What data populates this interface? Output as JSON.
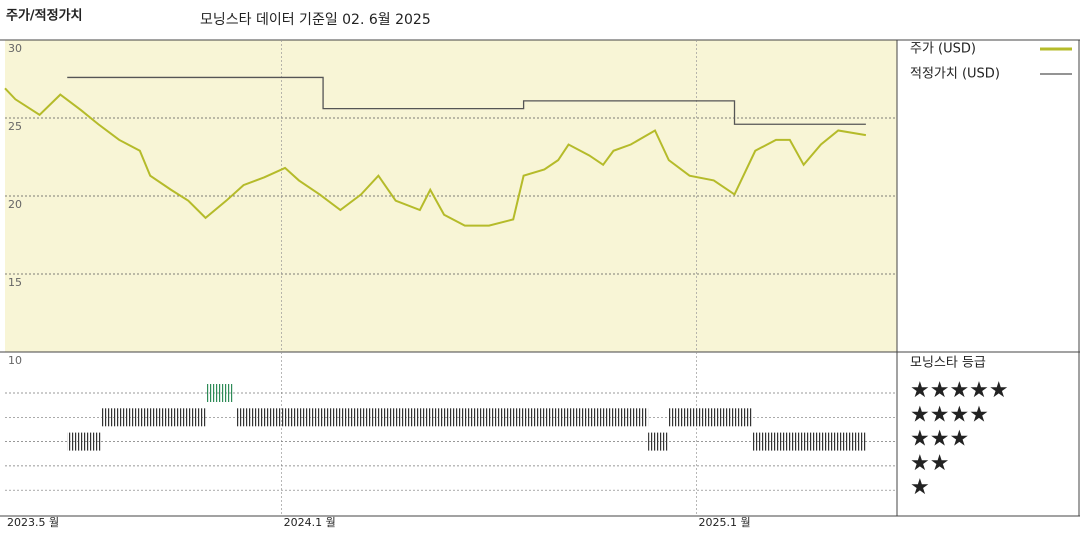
{
  "chart_data": [
    {
      "type": "line",
      "title": "주가/적정가치",
      "subtitle": "모닝스타 데이터 기준일 02. 6월 2025",
      "xlim": [
        0,
        25.8
      ],
      "xticks": [
        {
          "value": 0,
          "label": "2023.5 월"
        },
        {
          "value": 8,
          "label": "2024.1 월"
        },
        {
          "value": 20,
          "label": "2025.1 월"
        }
      ],
      "ylim": [
        10,
        30
      ],
      "yticks": [
        10,
        15,
        20,
        25,
        30
      ],
      "grid": true,
      "series": [
        {
          "name": "주가 (USD)",
          "color": "#b5bb2a",
          "x": [
            0,
            0.3,
            1.0,
            1.6,
            2.2,
            2.7,
            3.3,
            3.9,
            4.2,
            4.8,
            5.3,
            5.8,
            6.4,
            6.9,
            7.5,
            8.1,
            8.5,
            9.1,
            9.7,
            10.3,
            10.8,
            11.3,
            12.0,
            12.3,
            12.7,
            13.3,
            14.0,
            14.7,
            15.0,
            15.6,
            16.0,
            16.3,
            16.9,
            17.3,
            17.6,
            18.1,
            18.8,
            19.2,
            19.8,
            20.5,
            21.1,
            21.7,
            22.3,
            22.7,
            23.1,
            23.6,
            24.1,
            24.9
          ],
          "values": [
            26.9,
            26.2,
            25.2,
            26.5,
            25.5,
            24.6,
            23.6,
            22.9,
            21.3,
            20.4,
            19.7,
            18.6,
            19.7,
            20.7,
            21.2,
            21.8,
            21.0,
            20.1,
            19.1,
            20.1,
            21.3,
            19.7,
            19.1,
            20.4,
            18.8,
            18.1,
            18.1,
            18.5,
            21.3,
            21.7,
            22.3,
            23.3,
            22.6,
            22.0,
            22.9,
            23.3,
            24.2,
            22.3,
            21.3,
            21.0,
            20.1,
            22.9,
            23.6,
            23.6,
            22.0,
            23.3,
            24.2,
            23.9
          ]
        },
        {
          "name": "적정가치 (USD)",
          "color": "#555555",
          "x": [
            1.8,
            9.2,
            9.2,
            15.0,
            15.0,
            21.1,
            21.1,
            24.9
          ],
          "values": [
            27.6,
            27.6,
            25.6,
            25.6,
            26.1,
            26.1,
            24.6,
            24.6
          ]
        }
      ]
    },
    {
      "type": "timeline",
      "title": "모닝스타 등급",
      "xlim": [
        0,
        25.8
      ],
      "levels": [
        5,
        4,
        3,
        2,
        1
      ],
      "level_labels": [
        "★★★★★",
        "★★★★",
        "★★★",
        "★★",
        "★"
      ],
      "segments": [
        {
          "start": 1.8,
          "end": 2.8,
          "rating": 3,
          "color": "#333333"
        },
        {
          "start": 2.8,
          "end": 5.8,
          "rating": 4,
          "color": "#333333"
        },
        {
          "start": 5.8,
          "end": 6.6,
          "rating": 5,
          "color": "#2e8b57"
        },
        {
          "start": 6.7,
          "end": 18.6,
          "rating": 4,
          "color": "#333333"
        },
        {
          "start": 18.6,
          "end": 19.2,
          "rating": 3,
          "color": "#333333"
        },
        {
          "start": 19.2,
          "end": 21.6,
          "rating": 4,
          "color": "#333333"
        },
        {
          "start": 21.6,
          "end": 24.9,
          "rating": 3,
          "color": "#333333"
        }
      ]
    }
  ]
}
